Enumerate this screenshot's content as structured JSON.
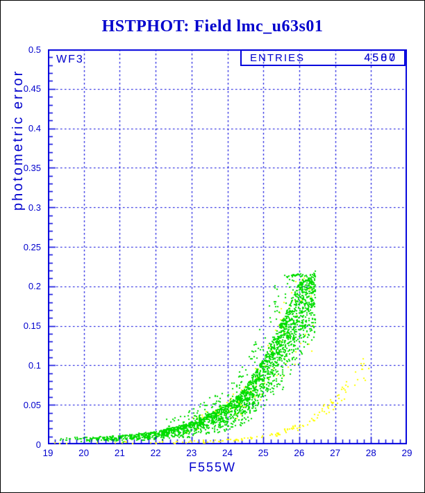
{
  "chart_data": {
    "type": "scatter",
    "title": "HSTPHOT: Field lmc_u63s01",
    "xlabel": "F555W",
    "ylabel": "photometric error",
    "xlim": [
      19,
      29
    ],
    "ylim": [
      0,
      0.5
    ],
    "x_major_step": 1,
    "x_minor_step": 0.2,
    "y_major_step": 0.05,
    "y_minor_step": 0.01,
    "grid": "dashed blue lines at every integer magnitude and every 0.05 error",
    "legend_position": "none",
    "x_tick_labels": [
      "19",
      "20",
      "21",
      "22",
      "23",
      "24",
      "25",
      "26",
      "27",
      "28",
      "29"
    ],
    "y_tick_labels": [
      "0",
      "0.05",
      "0.1",
      "0.15",
      "0.2",
      "0.25",
      "0.3",
      "0.35",
      "0.4",
      "0.45",
      "0.5"
    ],
    "annotations": {
      "chip_label": "WF3",
      "stats_box": {
        "label": "ENTRIES",
        "values": [
          "4500",
          "4587"
        ]
      }
    },
    "colors": {
      "background": "#ffffff",
      "outer_border": "#000000",
      "text_blue": "#0000cd",
      "line_blue": "#0000dd",
      "series_green": "#00dd00",
      "series_yellow": "#ffff00"
    },
    "seed": 7,
    "marker": "2px square",
    "series": [
      {
        "name": "wf3-stars-green",
        "color": "#00dd00",
        "description": "main photometric error vs magnitude sequence, rises steeply to cutoff at F555W ~26.45, max error ~0.22",
        "envelope_lo": [
          [
            19,
            0.001
          ],
          [
            20,
            0.0015
          ],
          [
            21,
            0.0025
          ],
          [
            22,
            0.0045
          ],
          [
            23,
            0.008
          ],
          [
            24,
            0.016
          ],
          [
            24.5,
            0.024
          ],
          [
            25,
            0.04
          ],
          [
            25.5,
            0.065
          ],
          [
            26,
            0.1
          ],
          [
            26.45,
            0.13
          ]
        ],
        "envelope_hi": [
          [
            19,
            0.008
          ],
          [
            20,
            0.009
          ],
          [
            21,
            0.011
          ],
          [
            22,
            0.016
          ],
          [
            23,
            0.028
          ],
          [
            24,
            0.05
          ],
          [
            24.5,
            0.072
          ],
          [
            25,
            0.108
          ],
          [
            25.5,
            0.155
          ],
          [
            26,
            0.205
          ],
          [
            26.45,
            0.22
          ]
        ]
      },
      {
        "name": "second-sequence-yellow",
        "color": "#ffff00",
        "description": "tight low-error sequence reaching ~0.1 at F555W ~28, plus stragglers mixed with green cloud",
        "curve": [
          [
            19,
            0.0015
          ],
          [
            22,
            0.002
          ],
          [
            23,
            0.0028
          ],
          [
            24,
            0.0045
          ],
          [
            25,
            0.009
          ],
          [
            25.5,
            0.014
          ],
          [
            26,
            0.022
          ],
          [
            26.5,
            0.035
          ],
          [
            27,
            0.053
          ],
          [
            27.5,
            0.075
          ],
          [
            28,
            0.102
          ]
        ]
      }
    ],
    "render_components": [
      {
        "series": 1,
        "color": "#ffff00",
        "layer": 1,
        "count": 110,
        "mag_min": 22.8,
        "mag_max": 26.4,
        "mag_pow": 0.8,
        "mode": "table",
        "table_path": "series.0.envelope_hi",
        "scale_min": 0.5,
        "scale_max": 1.15,
        "cap": 0.21,
        "jitter": 0.002
      },
      {
        "series": 0,
        "color": "#00dd00",
        "layer": 1,
        "count": 2300,
        "mag_min": 19,
        "mag_max": 26.45,
        "mag_pow": 0.42,
        "mode": "band",
        "lo_path": "series.0.envelope_lo",
        "hi_path": "series.0.envelope_hi",
        "beta_pow": 0.5,
        "cap": 0.22,
        "jitter": 0
      },
      {
        "series": 0,
        "color": "#00dd00",
        "layer": 1,
        "count": 240,
        "mag_min": 22.3,
        "mag_max": 26.45,
        "mag_pow": 0.8,
        "mode": "table",
        "table_path": "series.0.envelope_hi",
        "scale_min": 0.8,
        "scale_max": 1.5,
        "cap": 0.216,
        "jitter": 0.003
      },
      {
        "series": 1,
        "color": "#ffff00",
        "layer": 2,
        "count": 150,
        "mag_min": 19,
        "mag_max": 28.0,
        "mag_pow": 0.45,
        "mode": "table",
        "table_path": "series.1.curve",
        "scale_min": 0.85,
        "scale_max": 1.2,
        "cap": 0.115,
        "jitter": 0.0015
      }
    ]
  }
}
